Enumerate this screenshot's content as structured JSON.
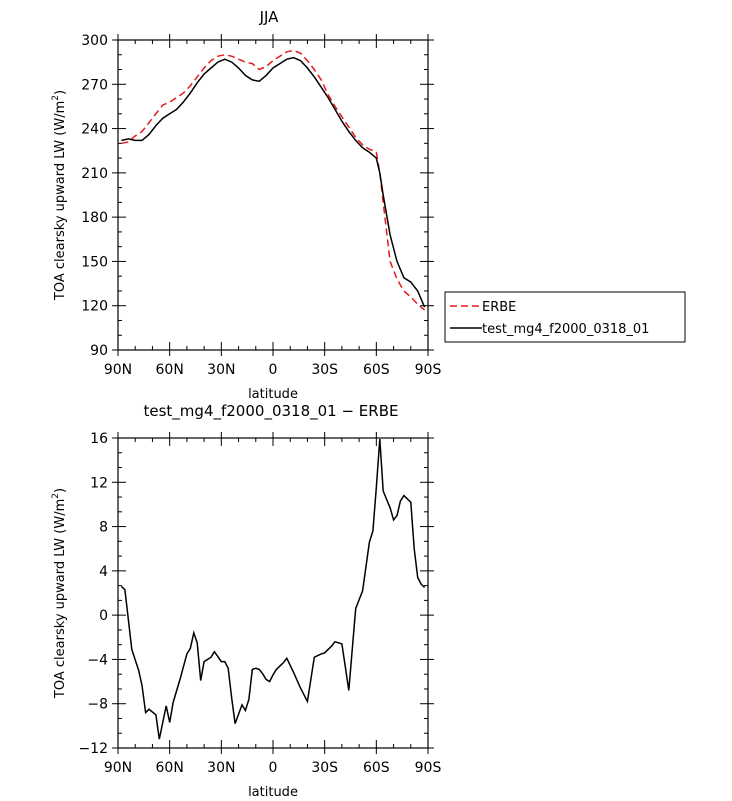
{
  "chart_data": [
    {
      "type": "line",
      "title": "JJA",
      "xlabel": "latitude",
      "ylabel": "TOA clearsky upward LW (W/m",
      "ylabel_sup": "2",
      "ylabel_end": ")",
      "xlim": [
        90,
        -90
      ],
      "ylim": [
        90,
        300
      ],
      "x_ticks": [
        90,
        60,
        30,
        0,
        -30,
        -60,
        -90
      ],
      "x_tick_labels": [
        "90N",
        "60N",
        "30N",
        "0",
        "30S",
        "60S",
        "90S"
      ],
      "y_ticks": [
        90,
        120,
        150,
        180,
        210,
        240,
        270,
        300
      ],
      "y_tick_labels": [
        "90",
        "120",
        "150",
        "180",
        "210",
        "240",
        "270",
        "300"
      ],
      "legend_position": "right",
      "x": [
        88,
        84,
        80,
        76,
        72,
        68,
        64,
        60,
        56,
        52,
        48,
        44,
        40,
        36,
        32,
        28,
        24,
        20,
        16,
        12,
        8,
        4,
        0,
        -4,
        -8,
        -12,
        -16,
        -20,
        -24,
        -28,
        -32,
        -36,
        -40,
        -44,
        -48,
        -52,
        -56,
        -60,
        -62,
        -64,
        -68,
        -72,
        -76,
        -80,
        -84,
        -88
      ],
      "series": [
        {
          "name": "ERBE",
          "color": "#e41a1c",
          "dash": true,
          "values": [
            230,
            231,
            235,
            238,
            244,
            250,
            256,
            258,
            261,
            264,
            269,
            275,
            281,
            286,
            289,
            290,
            289,
            287,
            285,
            284,
            280,
            282,
            286,
            289,
            292,
            293,
            291,
            286,
            280,
            273,
            263,
            255,
            248,
            241,
            234,
            229,
            226,
            224,
            210,
            190,
            150,
            138,
            130,
            126,
            121,
            117
          ]
        },
        {
          "name": "test_mg4_f2000_0318_01",
          "color": "#000000",
          "dash": false,
          "values": [
            232,
            233,
            232,
            232,
            236,
            242,
            247,
            250,
            253,
            258,
            264,
            271,
            277,
            281,
            285,
            287,
            285,
            281,
            276,
            273,
            272,
            276,
            281,
            284,
            287,
            288,
            286,
            281,
            275,
            268,
            261,
            253,
            245,
            238,
            232,
            227,
            224,
            220,
            210,
            195,
            168,
            150,
            139,
            136,
            130,
            119
          ]
        }
      ]
    },
    {
      "type": "line",
      "title": "test_mg4_f2000_0318_01 − ERBE",
      "xlabel": "latitude",
      "ylabel": "TOA clearsky upward LW (W/m",
      "ylabel_sup": "2",
      "ylabel_end": ")",
      "xlim": [
        90,
        -90
      ],
      "ylim": [
        -12,
        16
      ],
      "x_ticks": [
        90,
        60,
        30,
        0,
        -30,
        -60,
        -90
      ],
      "x_tick_labels": [
        "90N",
        "60N",
        "30N",
        "0",
        "30S",
        "60S",
        "90S"
      ],
      "y_ticks": [
        -12,
        -8,
        -4,
        0,
        4,
        8,
        12,
        16
      ],
      "y_tick_labels": [
        "−12",
        "−8",
        "−4",
        "0",
        "4",
        "8",
        "12",
        "16"
      ],
      "x": [
        88,
        86,
        82,
        78,
        76,
        74,
        72,
        68,
        66,
        62,
        60,
        58,
        54,
        50,
        48,
        46,
        44,
        42,
        40,
        38,
        36,
        34,
        30,
        28,
        26,
        24,
        22,
        18,
        16,
        14,
        12,
        10,
        8,
        6,
        4,
        2,
        0,
        -2,
        -6,
        -8,
        -12,
        -16,
        -20,
        -24,
        -28,
        -30,
        -34,
        -36,
        -40,
        -44,
        -48,
        -52,
        -56,
        -58,
        -60,
        -62,
        -64,
        -68,
        -70,
        -72,
        -74,
        -76,
        -80,
        -82,
        -84,
        -86,
        -88
      ],
      "series": [
        {
          "name": "test_mg4_f2000_0318_01 − ERBE",
          "color": "#000000",
          "dash": false,
          "values": [
            2.6,
            2.3,
            -3.1,
            -5.0,
            -6.4,
            -8.8,
            -8.5,
            -9.0,
            -11.2,
            -8.2,
            -9.7,
            -7.9,
            -5.8,
            -3.5,
            -3.0,
            -1.6,
            -2.5,
            -5.9,
            -4.2,
            -4.0,
            -3.8,
            -3.3,
            -4.2,
            -4.2,
            -4.8,
            -7.5,
            -9.8,
            -8.1,
            -8.6,
            -7.6,
            -4.9,
            -4.8,
            -4.9,
            -5.3,
            -5.8,
            -6.0,
            -5.4,
            -4.9,
            -4.3,
            -3.9,
            -5.2,
            -6.6,
            -7.8,
            -3.8,
            -3.5,
            -3.4,
            -2.8,
            -2.4,
            -2.6,
            -6.8,
            0.6,
            2.2,
            6.6,
            7.6,
            11.5,
            15.9,
            11.2,
            9.7,
            8.6,
            9.0,
            10.3,
            10.8,
            10.2,
            6.0,
            3.4,
            2.8,
            2.5
          ]
        }
      ]
    }
  ]
}
